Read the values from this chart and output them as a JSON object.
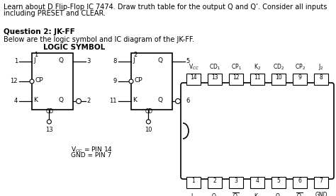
{
  "bg_color": "#ffffff",
  "text_color": "#000000",
  "top_pins": [
    "14",
    "13",
    "12",
    "11",
    "10",
    "9",
    "8"
  ],
  "bot_pins": [
    "1",
    "2",
    "3",
    "4",
    "5",
    "6",
    "7"
  ]
}
